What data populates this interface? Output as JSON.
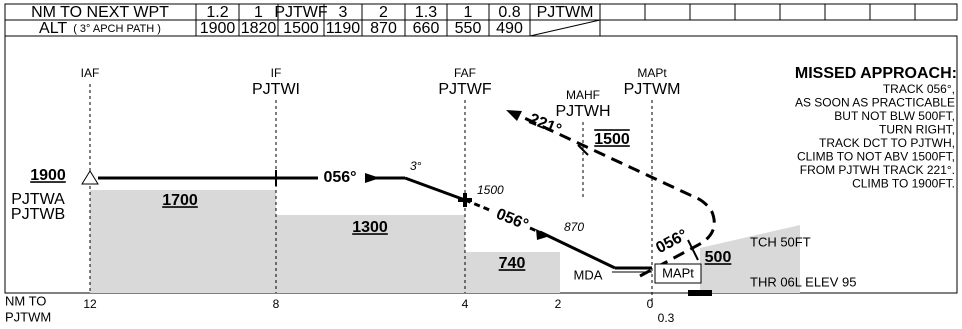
{
  "table": {
    "rows": [
      {
        "label": "NM TO NEXT WPT",
        "cells": [
          "1.2",
          "1",
          "PJTWF",
          "3",
          "2",
          "1.3",
          "1",
          "0.8",
          "PJTWM"
        ]
      },
      {
        "label": "ALT",
        "sublabel": "( 3° APCH PATH )",
        "cells": [
          "1900",
          "1820",
          "1500",
          "1190",
          "870",
          "660",
          "550",
          "490"
        ]
      }
    ]
  },
  "profile": {
    "fixes": [
      {
        "role": "IAF"
      },
      {
        "role": "IF",
        "name": "PJTWI"
      },
      {
        "role": "FAF",
        "name": "PJTWF"
      },
      {
        "role": "MAHF",
        "name": "PJTWH"
      },
      {
        "role": "MAPt",
        "name": "PJTWM"
      }
    ],
    "iaf_altitude": "1900",
    "iaf_names": [
      "PJTWA",
      "PJTWB"
    ],
    "segment_altitudes": [
      "1700",
      "1300",
      "740"
    ],
    "missed_altitude": "500",
    "holding_altitude": "1500",
    "crossing_altitudes": [
      "1500",
      "870"
    ],
    "tracks": [
      "056°",
      "056°",
      "056°",
      "221°"
    ],
    "glide_angle": "3°",
    "mda_label": "MDA",
    "mapt_label": "MAPt",
    "tch": "TCH 50FT",
    "threshold": "THR 06L ELEV 95",
    "missed_approach": {
      "title": "MISSED APPROACH:",
      "lines": [
        "TRACK 056°,",
        "AS SOON AS PRACTICABLE",
        "BUT NOT BLW 500FT,",
        "TURN RIGHT,",
        "TRACK DCT TO PJTWH,",
        "CLIMB TO NOT ABV 1500FT,",
        "FROM PJTWH TRACK 221°.",
        "CLIMB TO 1900FT."
      ]
    },
    "scale_title": [
      "NM TO",
      "PJTWM"
    ],
    "distances": [
      "12",
      "8",
      "4",
      "2",
      "0",
      "0.3"
    ]
  }
}
